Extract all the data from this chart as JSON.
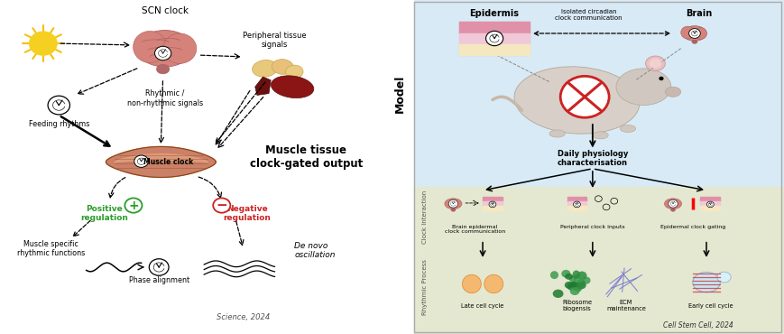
{
  "left_panel": {
    "bg_color": "#ffffff",
    "labels": {
      "scn_clock": "SCN clock",
      "feeding_rhythms": "Feeding rhythms",
      "rhythmic_signals": "Rhythmic /\nnon-rhythmic signals",
      "peripheral_tissue": "Peripheral tissue\nsignals",
      "muscle_clock": "Muscle clock",
      "muscle_tissue_output": "Muscle tissue\nclock-gated output",
      "positive_regulation": "Positive\nregulation",
      "negative_regulation": "Negative\nregulation",
      "muscle_specific": "Muscle specific\nrhythmic functions",
      "phase_alignment": "Phase alignment",
      "de_novo": "De novo\noscillation",
      "science_2024": "Science, 2024"
    },
    "colors": {
      "positive": "#2a9d2a",
      "negative": "#cc2222",
      "brain_color": "#d4827a",
      "muscle_fill": "#c87a60",
      "muscle_light": "#e8a888",
      "arrow_color": "#333333"
    }
  },
  "right_panel": {
    "bg_color_top": "#d8eaf5",
    "bg_color_bottom": "#e4e8d0",
    "labels": {
      "epidermis": "Epidermis",
      "brain": "Brain",
      "isolated_circadian": "Isolated circadian\nclock communication",
      "model": "Model",
      "daily_physiology": "Daily physiology\ncharacterisation",
      "clock_interaction": "Clock Interaction",
      "rhythmic_process": "Rhythmic Process",
      "brain_epidermal": "Brain epidermal\nclock communication",
      "peripheral_clock": "Peripheral clock inputs",
      "epidermal_clock": "Epidermal clock gating",
      "late_cell_cycle": "Late cell cycle",
      "ribosome": "Ribosome\nbiogensis",
      "ecm": "ECM\nmaintenance",
      "early_cell": "Early cell cycle",
      "cell_stem_2024": "Cell Stem Cell, 2024"
    }
  }
}
